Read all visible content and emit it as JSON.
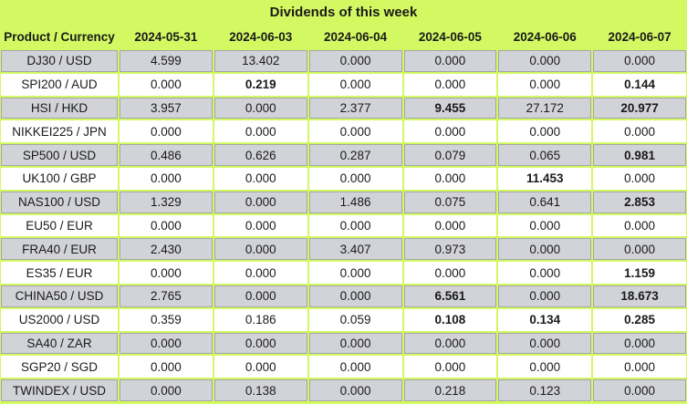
{
  "title": "Dividends of this week",
  "table": {
    "corner_header": "Product / Currency",
    "date_headers": [
      "2024-05-31",
      "2024-06-03",
      "2024-06-04",
      "2024-06-05",
      "2024-06-06",
      "2024-06-07"
    ],
    "rows": [
      {
        "product": "DJ30 / USD",
        "values": [
          "4.599",
          "13.402",
          "0.000",
          "0.000",
          "0.000",
          "0.000"
        ],
        "bold": [
          0,
          0,
          0,
          0,
          0,
          0
        ]
      },
      {
        "product": "SPI200 / AUD",
        "values": [
          "0.000",
          "0.219",
          "0.000",
          "0.000",
          "0.000",
          "0.144"
        ],
        "bold": [
          0,
          1,
          0,
          0,
          0,
          1
        ]
      },
      {
        "product": "HSI / HKD",
        "values": [
          "3.957",
          "0.000",
          "2.377",
          "9.455",
          "27.172",
          "20.977"
        ],
        "bold": [
          0,
          0,
          0,
          1,
          0,
          1
        ]
      },
      {
        "product": "NIKKEI225 / JPN",
        "values": [
          "0.000",
          "0.000",
          "0.000",
          "0.000",
          "0.000",
          "0.000"
        ],
        "bold": [
          0,
          0,
          0,
          0,
          0,
          0
        ]
      },
      {
        "product": "SP500 / USD",
        "values": [
          "0.486",
          "0.626",
          "0.287",
          "0.079",
          "0.065",
          "0.981"
        ],
        "bold": [
          0,
          0,
          0,
          0,
          0,
          1
        ]
      },
      {
        "product": "UK100 / GBP",
        "values": [
          "0.000",
          "0.000",
          "0.000",
          "0.000",
          "11.453",
          "0.000"
        ],
        "bold": [
          0,
          0,
          0,
          0,
          1,
          0
        ]
      },
      {
        "product": "NAS100 / USD",
        "values": [
          "1.329",
          "0.000",
          "1.486",
          "0.075",
          "0.641",
          "2.853"
        ],
        "bold": [
          0,
          0,
          0,
          0,
          0,
          1
        ]
      },
      {
        "product": "EU50 / EUR",
        "values": [
          "0.000",
          "0.000",
          "0.000",
          "0.000",
          "0.000",
          "0.000"
        ],
        "bold": [
          0,
          0,
          0,
          0,
          0,
          0
        ]
      },
      {
        "product": "FRA40 / EUR",
        "values": [
          "2.430",
          "0.000",
          "3.407",
          "0.973",
          "0.000",
          "0.000"
        ],
        "bold": [
          0,
          0,
          0,
          0,
          0,
          0
        ]
      },
      {
        "product": "ES35 / EUR",
        "values": [
          "0.000",
          "0.000",
          "0.000",
          "0.000",
          "0.000",
          "1.159"
        ],
        "bold": [
          0,
          0,
          0,
          0,
          0,
          1
        ]
      },
      {
        "product": "CHINA50 / USD",
        "values": [
          "2.765",
          "0.000",
          "0.000",
          "6.561",
          "0.000",
          "18.673"
        ],
        "bold": [
          0,
          0,
          0,
          1,
          0,
          1
        ]
      },
      {
        "product": "US2000 / USD",
        "values": [
          "0.359",
          "0.186",
          "0.059",
          "0.108",
          "0.134",
          "0.285"
        ],
        "bold": [
          0,
          0,
          0,
          1,
          1,
          1
        ]
      },
      {
        "product": "SA40 / ZAR",
        "values": [
          "0.000",
          "0.000",
          "0.000",
          "0.000",
          "0.000",
          "0.000"
        ],
        "bold": [
          0,
          0,
          0,
          0,
          0,
          0
        ]
      },
      {
        "product": "SGP20 / SGD",
        "values": [
          "0.000",
          "0.000",
          "0.000",
          "0.000",
          "0.000",
          "0.000"
        ],
        "bold": [
          0,
          0,
          0,
          0,
          0,
          0
        ]
      },
      {
        "product": "TWINDEX / USD",
        "values": [
          "0.000",
          "0.138",
          "0.000",
          "0.218",
          "0.123",
          "0.000"
        ],
        "bold": [
          0,
          0,
          0,
          0,
          0,
          0
        ]
      }
    ]
  },
  "colors": {
    "grid_green": "#d3f962",
    "row_gray": "#d2d3d8",
    "row_white": "#ffffff",
    "gray_cell_border": "#a4a4aa",
    "text": "#1a1a1a"
  }
}
